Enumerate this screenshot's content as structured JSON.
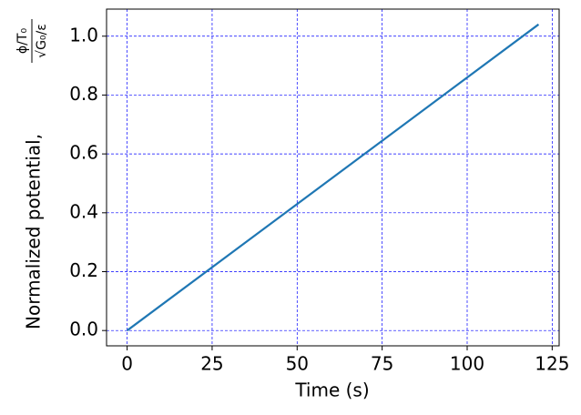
{
  "chart_data": {
    "type": "line",
    "xlabel": "Time (s)",
    "ylabel": "Normalized potential,",
    "ylabel_fraction": {
      "numerator": "ϕ/T₀",
      "denominator": "√G₀/ε"
    },
    "x": [
      0,
      121
    ],
    "series": [
      {
        "color": "#1f77b4",
        "values": [
          0,
          1.04
        ]
      }
    ],
    "xlim": [
      -6.05,
      127.05
    ],
    "xticks": [
      0,
      25,
      50,
      75,
      100,
      125
    ],
    "ylim": [
      -0.052,
      1.092
    ],
    "yticks": [
      {
        "value": 0,
        "label": "0.0"
      },
      0.2,
      0.4,
      0.6,
      0.8,
      {
        "value": 1,
        "label": "1.0"
      }
    ],
    "grid": true,
    "grid_color": "#0000ff"
  }
}
